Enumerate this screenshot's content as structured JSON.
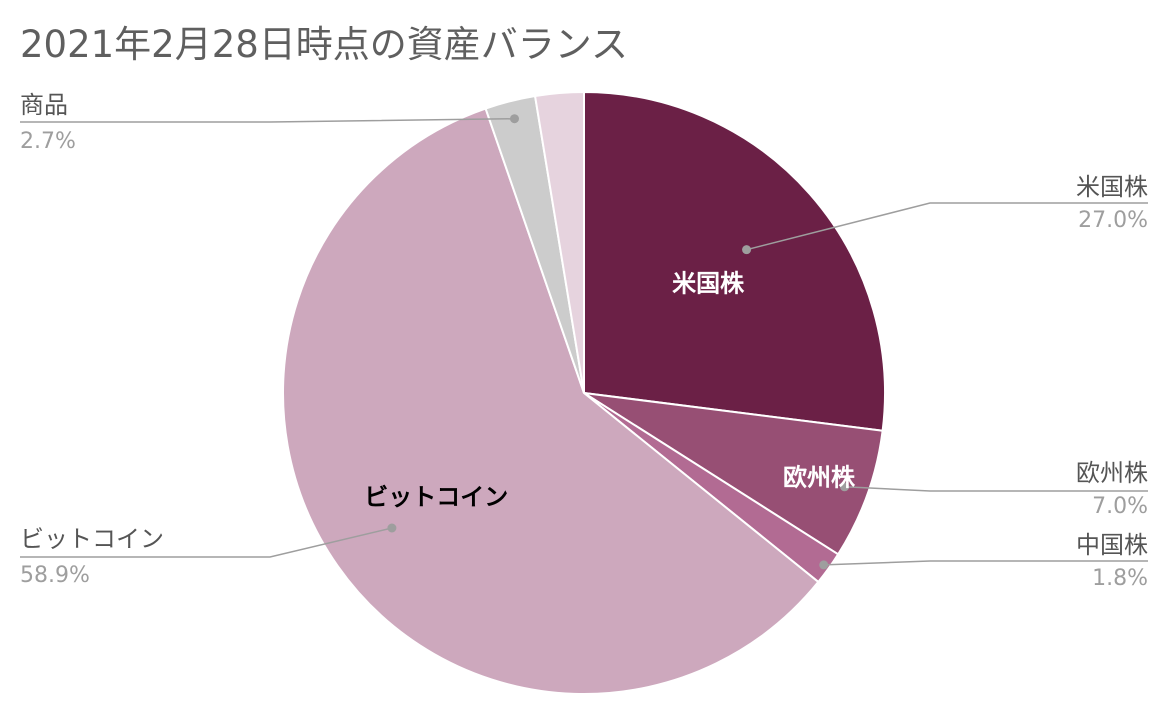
{
  "chart_data": {
    "type": "pie",
    "title": "2021年2月28日時点の資産バランス",
    "slices": [
      {
        "label": "米国株",
        "value": 27.0,
        "pct_label": "27.0%",
        "color": "#6b2046",
        "text_color": "#ffffff",
        "inner_label": "米国株"
      },
      {
        "label": "欧州株",
        "value": 7.0,
        "pct_label": "7.0%",
        "color": "#974f74",
        "text_color": "#ffffff",
        "inner_label": "欧州株"
      },
      {
        "label": "中国株",
        "value": 1.8,
        "pct_label": "1.8%",
        "color": "#b26b93",
        "text_color": "#ffffff",
        "inner_label": ""
      },
      {
        "label": "ビットコイン",
        "value": 58.9,
        "pct_label": "58.9%",
        "color": "#cda8bd",
        "text_color": "#000000",
        "inner_label": "ビットコイン"
      },
      {
        "label": "商品",
        "value": 2.7,
        "pct_label": "2.7%",
        "color": "#cccccc",
        "text_color": "#000000",
        "inner_label": ""
      },
      {
        "label": "",
        "value": 2.6,
        "pct_label": "",
        "color": "#e6d3de",
        "text_color": "#000000",
        "inner_label": ""
      }
    ],
    "legend": "callouts"
  }
}
